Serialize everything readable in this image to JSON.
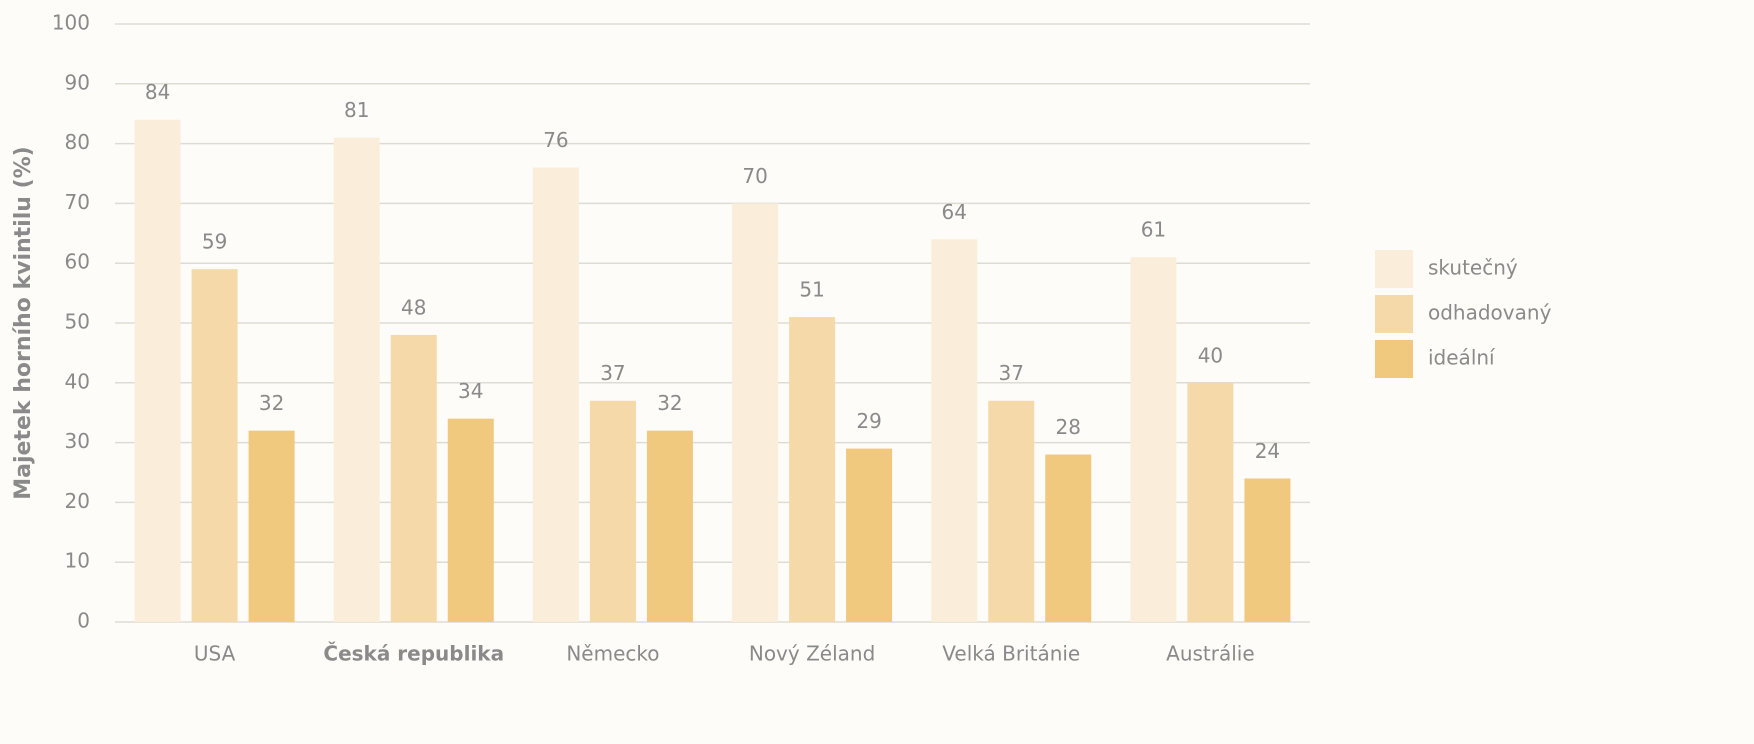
{
  "chart_data": {
    "type": "bar",
    "y_label": "Majetek horního kvintilu (%)",
    "categories": [
      "USA",
      "Česká republika",
      "Německo",
      "Nový Zéland",
      "Velká Británie",
      "Austrálie"
    ],
    "highlight_category": "Česká republika",
    "series": [
      {
        "name": "skutečný",
        "color": "#faeedb",
        "values": [
          84,
          81,
          76,
          70,
          64,
          61
        ]
      },
      {
        "name": "odhadovaný",
        "color": "#f5d9a8",
        "values": [
          59,
          48,
          37,
          51,
          37,
          40
        ]
      },
      {
        "name": "ideální",
        "color": "#f0c87e",
        "values": [
          32,
          34,
          32,
          29,
          28,
          24
        ]
      }
    ],
    "ylim": [
      0,
      100
    ],
    "yticks": [
      0,
      10,
      20,
      30,
      40,
      50,
      60,
      70,
      80,
      90,
      100
    ],
    "grid": true,
    "legend": "right",
    "data_labels": true
  }
}
